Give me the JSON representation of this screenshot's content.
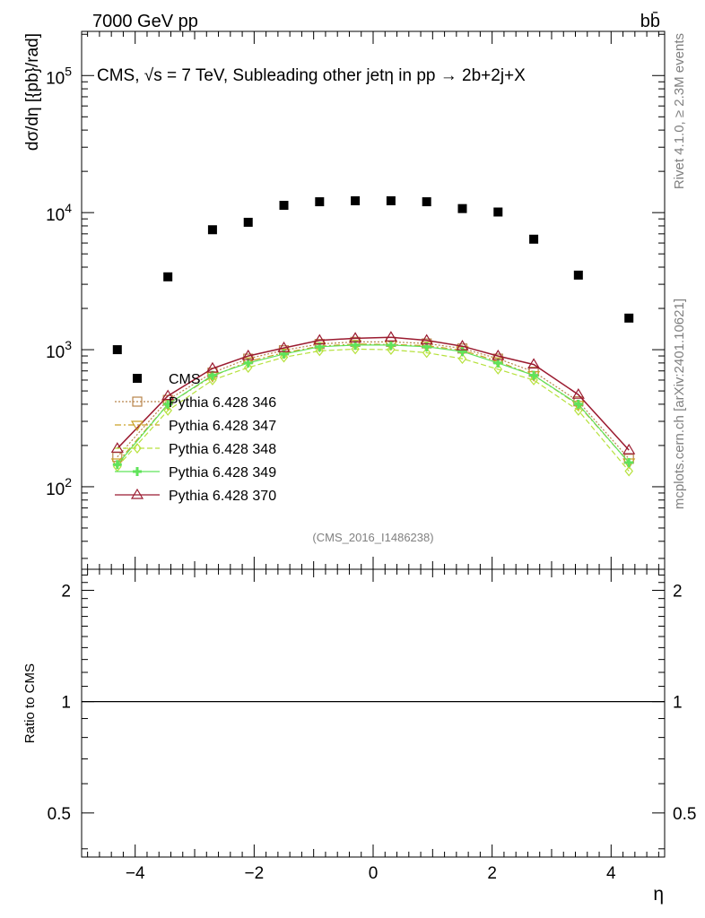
{
  "header": {
    "left": "7000 GeV pp",
    "right": "bb̄"
  },
  "side_labels": {
    "rivet": "Rivet 4.1.0, ≥ 2.3M events",
    "mcplots": "mcplots.cern.ch [arXiv:2401.10621]"
  },
  "chart_data": {
    "type": "scatter",
    "title": "CMS, √s = 7 TeV, Subleading other jetη in pp →  2b+2j+X",
    "watermark": "(CMS_2016_I1486238)",
    "xlabel": "η",
    "ylabel": "dσ/dη [{pb}/rad]",
    "ratio_ylabel": "Ratio to CMS",
    "xlim": [
      -4.9,
      4.9
    ],
    "ylim": [
      25,
      210000
    ],
    "yscale": "log",
    "ratio_ylim": [
      0.38,
      2.28
    ],
    "x_ticks": [
      -4,
      -2,
      0,
      2,
      4
    ],
    "x_tick_labels": [
      "−4",
      "−2",
      "0",
      "2",
      "4"
    ],
    "y_tick_labels": [
      {
        "base": "10",
        "exp": "2",
        "value": 100
      },
      {
        "base": "10",
        "exp": "3",
        "value": 1000
      },
      {
        "base": "10",
        "exp": "4",
        "value": 10000
      },
      {
        "base": "10",
        "exp": "5",
        "value": 100000
      }
    ],
    "ratio_ticks": [
      {
        "label": "0.5",
        "value": 0.5
      },
      {
        "label": "1",
        "value": 1
      },
      {
        "label": "2",
        "value": 2
      }
    ],
    "x": [
      -4.3,
      -3.45,
      -2.7,
      -2.1,
      -1.5,
      -0.9,
      -0.3,
      0.3,
      0.9,
      1.5,
      2.1,
      2.7,
      3.45,
      4.3
    ],
    "data": {
      "name": "CMS",
      "values": [
        1000,
        3400,
        7500,
        8500,
        11300,
        12000,
        12200,
        12200,
        12000,
        10700,
        10100,
        6400,
        3500,
        1700
      ]
    },
    "series": [
      {
        "name": "Pythia 6.428 346",
        "color": "#b8844a",
        "dash": "2,2",
        "marker": "square",
        "values": [
          165,
          430,
          680,
          860,
          990,
          1100,
          1140,
          1140,
          1110,
          1020,
          860,
          690,
          420,
          160
        ]
      },
      {
        "name": "Pythia 6.428 347",
        "color": "#c9a227",
        "dash": "7,3,2,3",
        "marker": "triangle-down",
        "values": [
          150,
          400,
          640,
          820,
          950,
          1060,
          1100,
          1090,
          1070,
          990,
          820,
          650,
          395,
          150
        ]
      },
      {
        "name": "Pythia 6.428 348",
        "color": "#b6e13c",
        "dash": "6,3",
        "marker": "diamond",
        "values": [
          140,
          360,
          600,
          740,
          880,
          980,
          1010,
          1000,
          950,
          860,
          720,
          600,
          360,
          130
        ]
      },
      {
        "name": "Pythia 6.428 349",
        "color": "#5fe35a",
        "dash": "none",
        "marker": "cross",
        "values": [
          145,
          400,
          650,
          800,
          930,
          1050,
          1080,
          1080,
          1050,
          970,
          800,
          650,
          400,
          150
        ]
      },
      {
        "name": "Pythia 6.428 370",
        "color": "#9b1b30",
        "dash": "none",
        "marker": "triangle-up",
        "values": [
          190,
          460,
          730,
          900,
          1030,
          1170,
          1210,
          1230,
          1170,
          1060,
          900,
          780,
          470,
          185
        ]
      }
    ],
    "ratio_reference": 1
  }
}
